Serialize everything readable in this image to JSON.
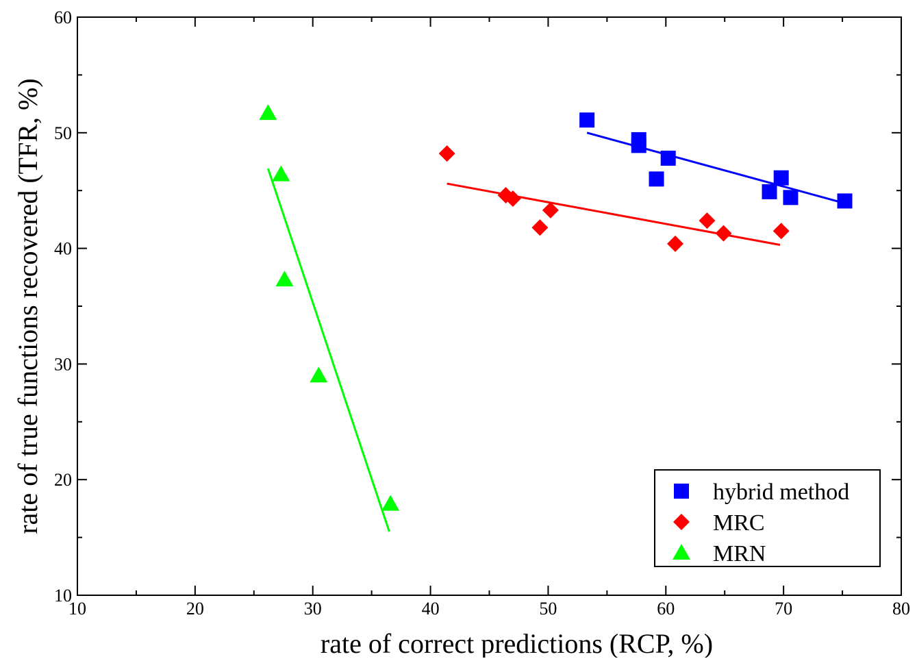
{
  "chart_data": {
    "type": "scatter",
    "title": "",
    "xlabel": "rate of correct predictions  (RCP, %)",
    "ylabel": "rate of true functions recovered (TFR, %)",
    "xlim": [
      10,
      80
    ],
    "ylim": [
      10,
      60
    ],
    "xticks": [
      10,
      20,
      30,
      40,
      50,
      60,
      70,
      80
    ],
    "yticks": [
      10,
      20,
      30,
      40,
      50,
      60
    ],
    "x_tick_labels": [
      "10",
      "20",
      "30",
      "40",
      "50",
      "60",
      "70",
      "80"
    ],
    "y_tick_labels": [
      "10",
      "20",
      "30",
      "40",
      "50",
      "60"
    ],
    "grid": false,
    "legend_position": "bottom-right",
    "series": [
      {
        "name": "hybrid method",
        "marker": "square",
        "color": "#0000ff",
        "points": [
          [
            53.3,
            51.1
          ],
          [
            57.7,
            49.4
          ],
          [
            57.7,
            48.9
          ],
          [
            59.2,
            46.0
          ],
          [
            60.2,
            47.8
          ],
          [
            68.8,
            44.9
          ],
          [
            69.8,
            46.1
          ],
          [
            70.6,
            44.4
          ],
          [
            75.2,
            44.1
          ]
        ],
        "fit": [
          [
            53.3,
            50.0
          ],
          [
            75.2,
            43.9
          ]
        ]
      },
      {
        "name": "MRC",
        "marker": "diamond",
        "color": "#ff0000",
        "points": [
          [
            41.4,
            48.2
          ],
          [
            46.4,
            44.6
          ],
          [
            47.0,
            44.3
          ],
          [
            49.3,
            41.8
          ],
          [
            50.2,
            43.3
          ],
          [
            60.8,
            40.4
          ],
          [
            63.5,
            42.4
          ],
          [
            64.9,
            41.3
          ],
          [
            69.8,
            41.5
          ]
        ],
        "fit": [
          [
            41.4,
            45.6
          ],
          [
            69.7,
            40.3
          ]
        ]
      },
      {
        "name": "MRN",
        "marker": "triangle",
        "color": "#00ff00",
        "points": [
          [
            26.2,
            51.7
          ],
          [
            27.3,
            46.4
          ],
          [
            27.6,
            37.3
          ],
          [
            30.5,
            29.0
          ],
          [
            36.6,
            17.9
          ]
        ],
        "fit": [
          [
            26.2,
            46.9
          ],
          [
            36.5,
            15.5
          ]
        ]
      }
    ]
  }
}
